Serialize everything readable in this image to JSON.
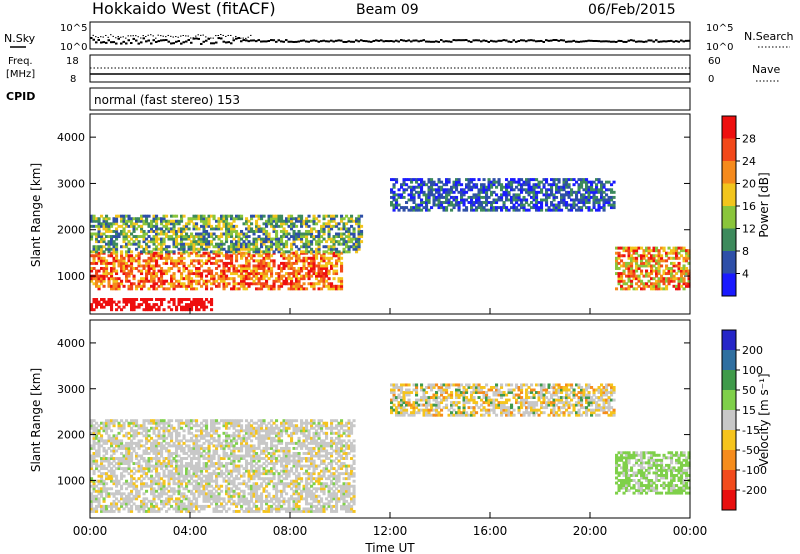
{
  "header": {
    "title": "Hokkaido West (fitACF)",
    "beam": "Beam 09",
    "date": "06/Feb/2015"
  },
  "status_panels": {
    "nsky_label": "N.Sky",
    "nsearch_label": "N.Search",
    "noise_ticks": [
      "10^5",
      "10^0"
    ],
    "freq_label": "Freq.",
    "freq_unit": "[MHz]",
    "freq_ticks": [
      "18",
      "8"
    ],
    "nave_label": "Nave",
    "nave_ticks": [
      "60",
      "0"
    ],
    "cpid_label": "CPID",
    "cpid_text": "normal (fast stereo) 153"
  },
  "chart_data": [
    {
      "type": "heatmap",
      "name": "power",
      "ylabel": "Slant Range [km]",
      "y_ticks": [
        "1000",
        "2000",
        "3000",
        "4000"
      ],
      "ylim": [
        180,
        4500
      ],
      "colorbar_label": "Power [dB]",
      "colorbar_ticks": [
        "4",
        "8",
        "12",
        "16",
        "20",
        "24",
        "28"
      ],
      "colors": [
        "#1a1aff",
        "#2e4fa8",
        "#3d8a5c",
        "#8ac53b",
        "#f2c51d",
        "#f58a1c",
        "#f2481a",
        "#ee0f0f"
      ],
      "echo_regions": [
        {
          "t_start": 0.0,
          "t_end": 4.8,
          "r_low": 250,
          "r_high": 480,
          "level": "28+"
        },
        {
          "t_start": 0.0,
          "t_end": 10.0,
          "r_low": 700,
          "r_high": 1500,
          "level": "20-28"
        },
        {
          "t_start": 0.0,
          "t_end": 10.8,
          "r_low": 1500,
          "r_high": 2300,
          "level": "8-16"
        },
        {
          "t_start": 12.0,
          "t_end": 21.0,
          "r_low": 2400,
          "r_high": 3100,
          "level": "4-12"
        },
        {
          "t_start": 21.0,
          "t_end": 24.0,
          "r_low": 700,
          "r_high": 1600,
          "level": "16-28"
        }
      ]
    },
    {
      "type": "heatmap",
      "name": "velocity",
      "ylabel": "Slant Range [km]",
      "xlabel": "Time UT",
      "x_ticks": [
        "00:00",
        "04:00",
        "08:00",
        "12:00",
        "16:00",
        "20:00",
        "00:00"
      ],
      "y_ticks": [
        "1000",
        "2000",
        "3000",
        "4000"
      ],
      "ylim": [
        180,
        4500
      ],
      "colorbar_label": "Velocity [m s⁻¹]",
      "colorbar_ticks": [
        "200",
        "100",
        "50",
        "15",
        "-15",
        "-50",
        "-100",
        "-200"
      ],
      "colors": [
        "#2626c8",
        "#2f6fa0",
        "#3f9a4a",
        "#7fd04a",
        "#c8c8c8",
        "#f5c41d",
        "#f58c1c",
        "#f24b1c",
        "#e80e0e"
      ],
      "echo_regions": [
        {
          "t_start": 0.0,
          "t_end": 10.5,
          "r_low": 300,
          "r_high": 2300,
          "level": "-15 to 15"
        },
        {
          "t_start": 12.0,
          "t_end": 21.0,
          "r_low": 2400,
          "r_high": 3100,
          "level": "-50 to 15"
        },
        {
          "t_start": 21.0,
          "t_end": 24.0,
          "r_low": 700,
          "r_high": 1600,
          "level": "15 to 50"
        }
      ]
    }
  ]
}
